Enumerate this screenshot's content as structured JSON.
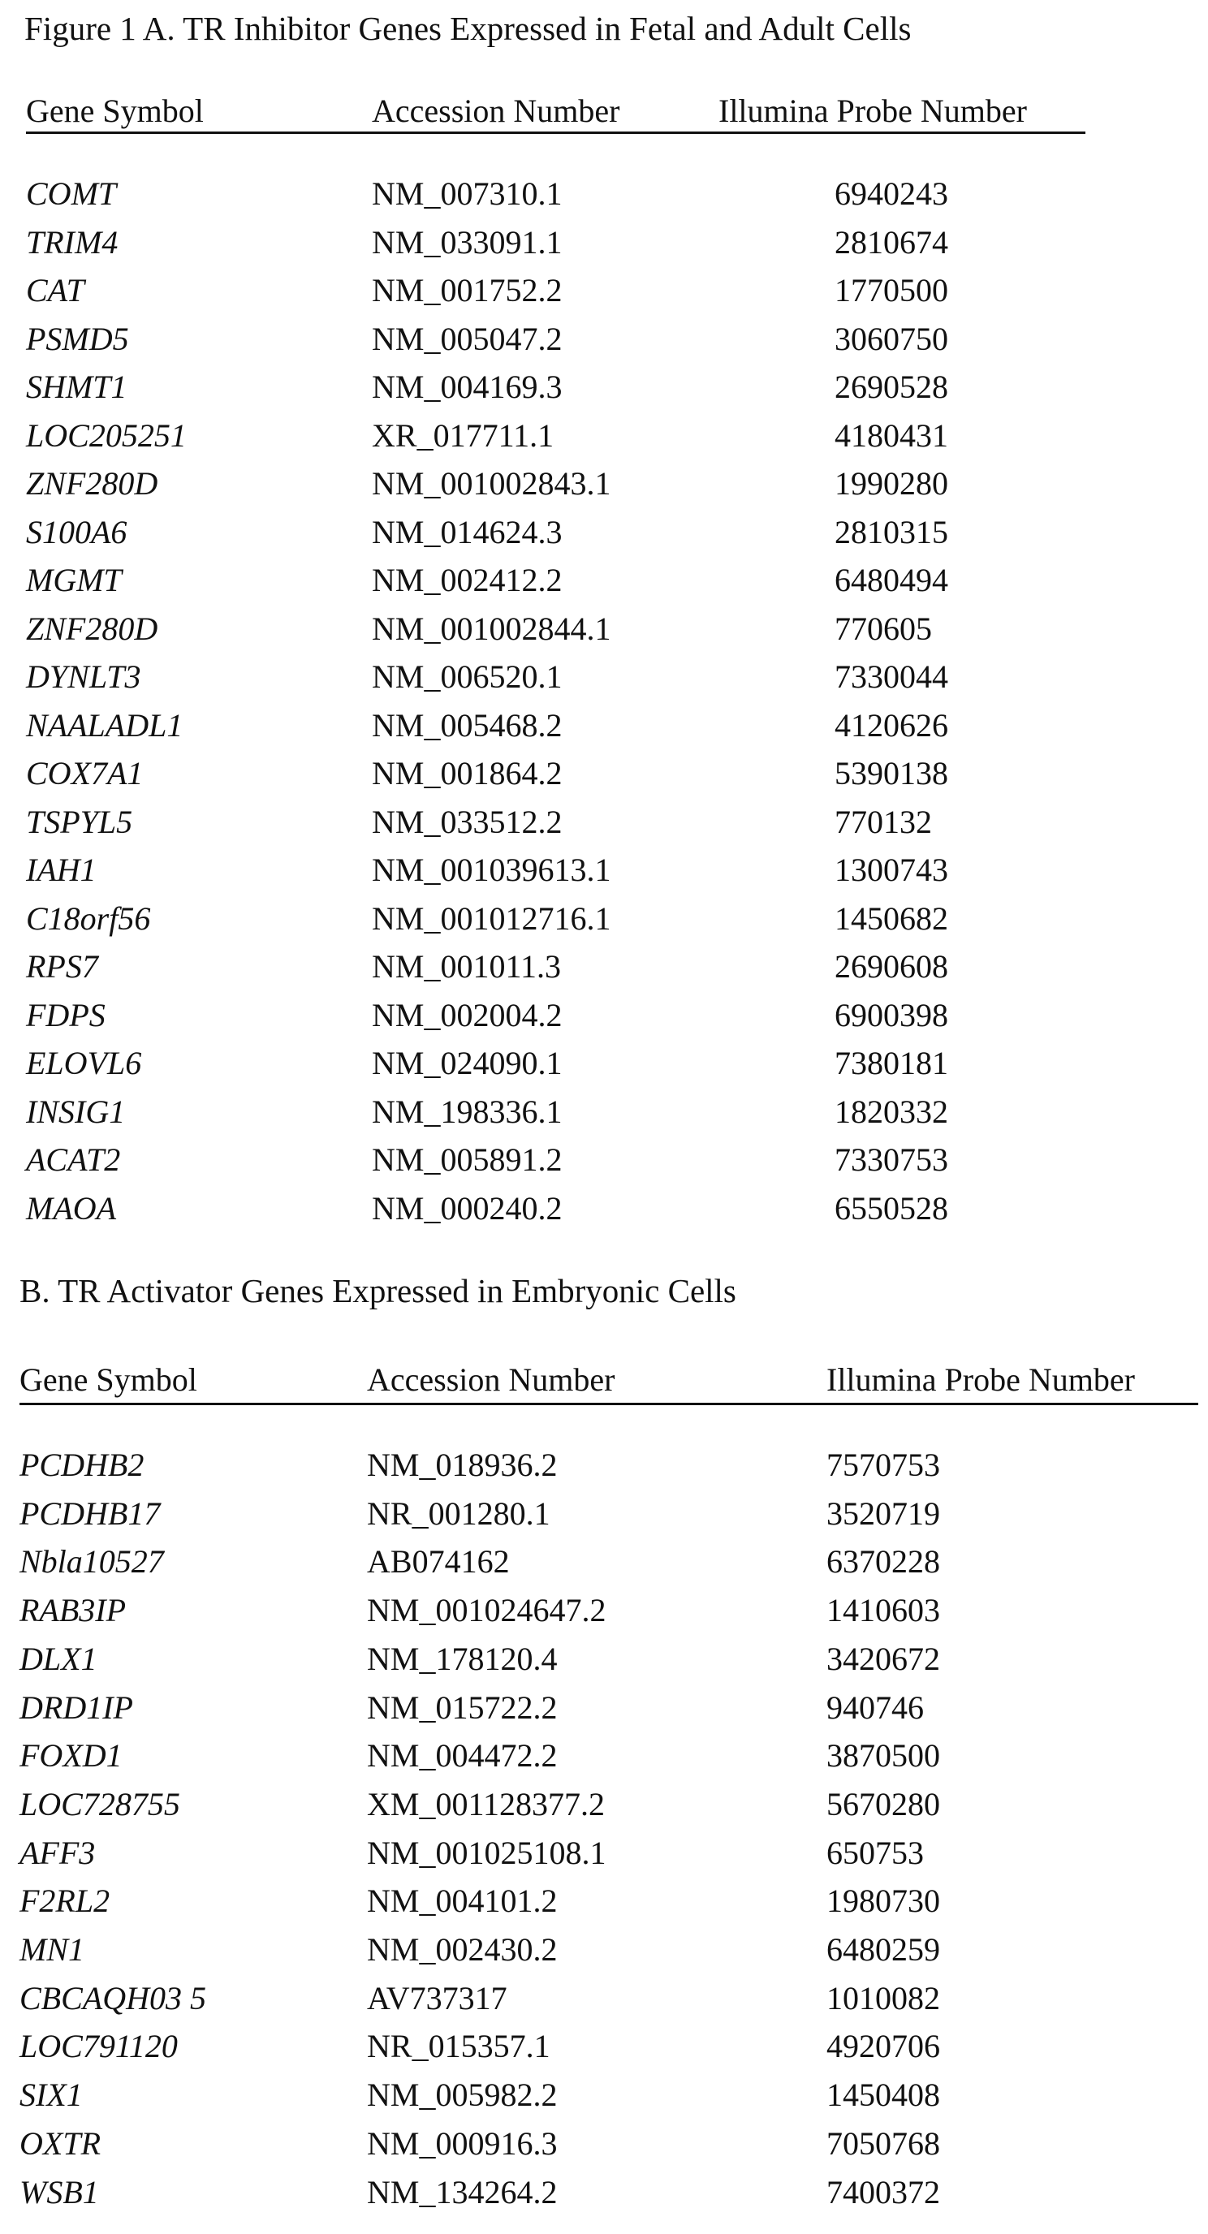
{
  "section_a": {
    "caption": "Figure 1 A. TR Inhibitor Genes Expressed in Fetal and Adult Cells",
    "headers": [
      "Gene Symbol",
      "Accession Number",
      "Illumina Probe Number"
    ],
    "rows": [
      [
        "COMT",
        "NM_007310.1",
        "6940243"
      ],
      [
        "TRIM4",
        "NM_033091.1",
        "2810674"
      ],
      [
        "CAT",
        "NM_001752.2",
        "1770500"
      ],
      [
        "PSMD5",
        "NM_005047.2",
        "3060750"
      ],
      [
        "SHMT1",
        "NM_004169.3",
        "2690528"
      ],
      [
        "LOC205251",
        "XR_017711.1",
        "4180431"
      ],
      [
        "ZNF280D",
        "NM_001002843.1",
        "1990280"
      ],
      [
        "S100A6",
        "NM_014624.3",
        "2810315"
      ],
      [
        "MGMT",
        "NM_002412.2",
        "6480494"
      ],
      [
        "ZNF280D",
        "NM_001002844.1",
        "770605"
      ],
      [
        "DYNLT3",
        "NM_006520.1",
        "7330044"
      ],
      [
        "NAALADL1",
        "NM_005468.2",
        "4120626"
      ],
      [
        "COX7A1",
        "NM_001864.2",
        "5390138"
      ],
      [
        "TSPYL5",
        "NM_033512.2",
        "770132"
      ],
      [
        "IAH1",
        "NM_001039613.1",
        "1300743"
      ],
      [
        "C18orf56",
        "NM_001012716.1",
        "1450682"
      ],
      [
        "RPS7",
        "NM_001011.3",
        "2690608"
      ],
      [
        "FDPS",
        "NM_002004.2",
        "6900398"
      ],
      [
        "ELOVL6",
        "NM_024090.1",
        "7380181"
      ],
      [
        "INSIG1",
        "NM_198336.1",
        "1820332"
      ],
      [
        "ACAT2",
        "NM_005891.2",
        "7330753"
      ],
      [
        "MAOA",
        "NM_000240.2",
        "6550528"
      ]
    ]
  },
  "section_b": {
    "caption": "B. TR Activator Genes Expressed in Embryonic Cells",
    "headers": [
      "Gene Symbol",
      "Accession Number",
      "Illumina Probe Number"
    ],
    "rows": [
      [
        "PCDHB2",
        "NM_018936.2",
        "7570753"
      ],
      [
        "PCDHB17",
        "NR_001280.1",
        "3520719"
      ],
      [
        "Nbla10527",
        "AB074162",
        "6370228"
      ],
      [
        "RAB3IP",
        "NM_001024647.2",
        "1410603"
      ],
      [
        "DLX1",
        "NM_178120.4",
        "3420672"
      ],
      [
        "DRD1IP",
        "NM_015722.2",
        "940746"
      ],
      [
        "FOXD1",
        "NM_004472.2",
        "3870500"
      ],
      [
        "LOC728755",
        "XM_001128377.2",
        "5670280"
      ],
      [
        "AFF3",
        "NM_001025108.1",
        "650753"
      ],
      [
        "F2RL2",
        "NM_004101.2",
        "1980730"
      ],
      [
        "MN1",
        "NM_002430.2",
        "6480259"
      ],
      [
        "CBCAQH03 5",
        "AV737317",
        "1010082"
      ],
      [
        "LOC791120",
        "NR_015357.1",
        "4920706"
      ],
      [
        "SIX1",
        "NM_005982.2",
        "1450408"
      ],
      [
        "OXTR",
        "NM_000916.3",
        "7050768"
      ],
      [
        "WSB1",
        "NM_134264.2",
        "7400372"
      ]
    ]
  }
}
